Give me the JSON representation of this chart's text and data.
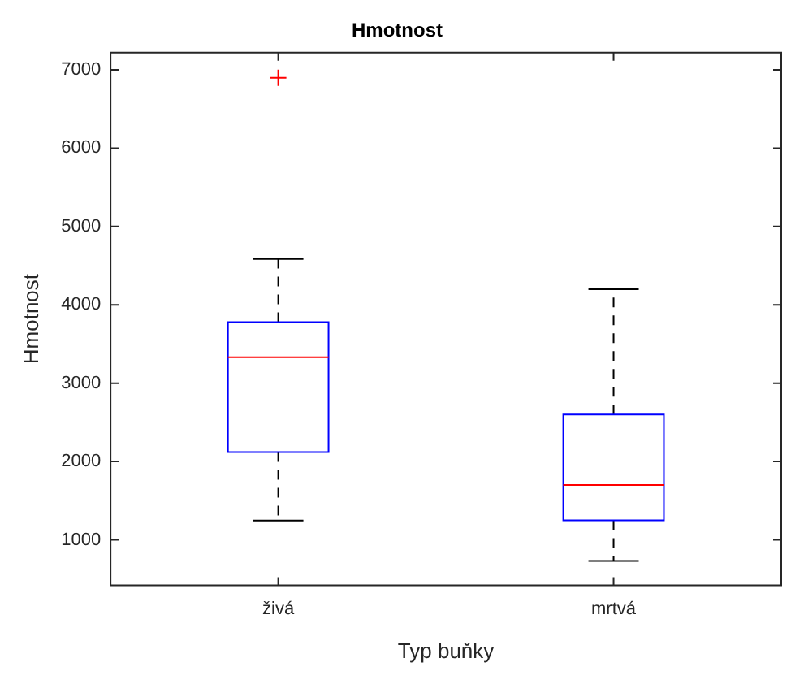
{
  "chart_data": {
    "type": "box",
    "title": "Hmotnost",
    "xlabel": "Typ buňky",
    "ylabel": "Hmotnost",
    "categories": [
      "živá",
      "mrtvá"
    ],
    "boxes": [
      {
        "low": 1245,
        "q1": 2120,
        "median": 3330,
        "q3": 3780,
        "high": 4585,
        "outliers": [
          6900
        ]
      },
      {
        "low": 730,
        "q1": 1250,
        "median": 1700,
        "q3": 2600,
        "high": 4200
      }
    ],
    "color": "#0000ff",
    "ylim": [
      420,
      7220
    ],
    "yticks": [
      1000,
      2000,
      3000,
      4000,
      5000,
      6000,
      7000
    ],
    "grid": false,
    "legend": false
  }
}
